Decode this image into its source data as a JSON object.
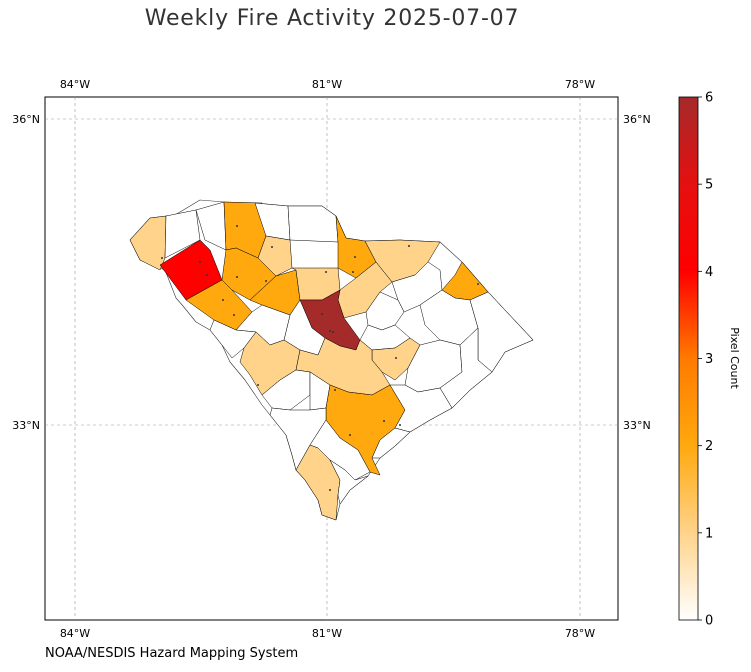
{
  "title": "Weekly Fire Activity 2025-07-07",
  "source": "NOAA/NESDIS Hazard Mapping System",
  "axes": {
    "lon_ticks": [
      "84°W",
      "81°W",
      "78°W"
    ],
    "lat_ticks": [
      "36°N",
      "33°N"
    ]
  },
  "colorbar": {
    "label": "Pixel Count",
    "ticks": [
      "0",
      "1",
      "2",
      "3",
      "4",
      "5",
      "6"
    ],
    "min": 0,
    "max": 6,
    "colors": [
      "#ffffff",
      "#ffd38a",
      "#ffa90e",
      "#ff7a00",
      "#ff0000",
      "#e51010",
      "#a52a2a"
    ]
  },
  "colors": {
    "level_1": "#ffd38a",
    "level_2": "#ffa90e",
    "level_4": "#ff0000",
    "level_6": "#a52a2a",
    "level_0": "#ffffff",
    "border": "#000000",
    "grid": "#999999"
  }
}
